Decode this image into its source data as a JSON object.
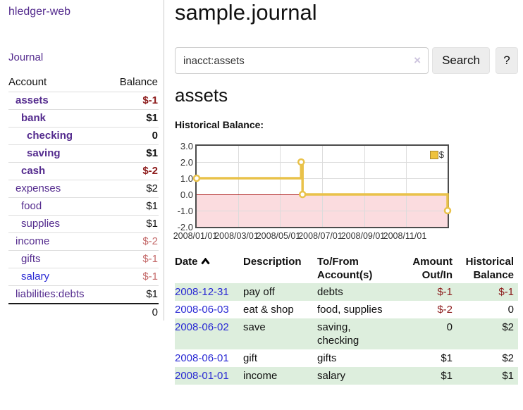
{
  "sidebar": {
    "brand": "hledger-web",
    "journal_label": "Journal",
    "accounts_table": {
      "account_header": "Account",
      "balance_header": "Balance",
      "rows": [
        {
          "name": "assets",
          "balance": "$-1",
          "level": 1
        },
        {
          "name": "bank",
          "balance": "$1",
          "level": 2
        },
        {
          "name": "checking",
          "balance": "0",
          "level": 3
        },
        {
          "name": "saving",
          "balance": "$1",
          "level": 3
        },
        {
          "name": "cash",
          "balance": "$-2",
          "level": 2
        },
        {
          "name": "expenses",
          "balance": "$2",
          "level": 1
        },
        {
          "name": "food",
          "balance": "$1",
          "level": 2
        },
        {
          "name": "supplies",
          "balance": "$1",
          "level": 2
        },
        {
          "name": "income",
          "balance": "$-2",
          "level": 1
        },
        {
          "name": "gifts",
          "balance": "$-1",
          "level": 2
        },
        {
          "name": "salary",
          "balance": "$-1",
          "level": 2
        },
        {
          "name": "liabilities:debts",
          "balance": "$1",
          "level": 1
        }
      ],
      "total": "0"
    }
  },
  "header": {
    "title": "sample.journal"
  },
  "search": {
    "query": "inacct:assets",
    "clear_icon": "×",
    "search_label": "Search",
    "help_label": "?"
  },
  "account_page": {
    "heading": "assets",
    "chart_label": "Historical Balance:"
  },
  "chart_data": {
    "type": "line",
    "step": true,
    "title": "Historical Balance:",
    "legend": "$",
    "legend_position": "top-right",
    "grid": true,
    "x_range": [
      "2008-01-01",
      "2008-12-31"
    ],
    "ylim": [
      -2.0,
      3.0
    ],
    "yticks": [
      3.0,
      2.0,
      1.0,
      0.0,
      -1.0,
      -2.0
    ],
    "xticks": [
      {
        "date": "2008-01-01",
        "label": "2008/01/01"
      },
      {
        "date": "2008-03-01",
        "label": "2008/03/01"
      },
      {
        "date": "2008-05-01",
        "label": "2008/05/01"
      },
      {
        "date": "2008-07-01",
        "label": "2008/07/01"
      },
      {
        "date": "2008-09-01",
        "label": "2008/09/01"
      },
      {
        "date": "2008-11-01",
        "label": "2008/11/01"
      }
    ],
    "points": [
      {
        "date": "2008-01-01",
        "value": 1
      },
      {
        "date": "2008-06-01",
        "value": 2
      },
      {
        "date": "2008-06-03",
        "value": 0
      },
      {
        "date": "2008-12-31",
        "value": -1
      }
    ],
    "line_color": "#e9c24a",
    "marker_fill": "#ffffff",
    "negative_region_fill": "#fbdcdf",
    "zero_line_color": "#aa1111"
  },
  "register_table": {
    "headers": {
      "date": "Date",
      "description": "Description",
      "accounts": "To/From Account(s)",
      "amount": "Amount Out/In",
      "balance": "Historical Balance"
    },
    "rows": [
      {
        "date": "2008-12-31",
        "description": "pay off",
        "accounts": "debts",
        "amount": "$-1",
        "balance": "$-1"
      },
      {
        "date": "2008-06-03",
        "description": "eat & shop",
        "accounts": "food, supplies",
        "amount": "$-2",
        "balance": "0"
      },
      {
        "date": "2008-06-02",
        "description": "save",
        "accounts": "saving, checking",
        "amount": "0",
        "balance": "$2"
      },
      {
        "date": "2008-06-01",
        "description": "gift",
        "accounts": "gifts",
        "amount": "$1",
        "balance": "$2"
      },
      {
        "date": "2008-01-01",
        "description": "income",
        "accounts": "salary",
        "amount": "$1",
        "balance": "$1"
      }
    ]
  },
  "colors": {
    "accent_purple": "#542b8e",
    "link_blue": "#2a2ad4",
    "negative_strong": "#8c1a1a",
    "negative_muted": "#c46a6a",
    "row_stripe_green": "#ddeedd",
    "chart_gold": "#e9c24a"
  }
}
